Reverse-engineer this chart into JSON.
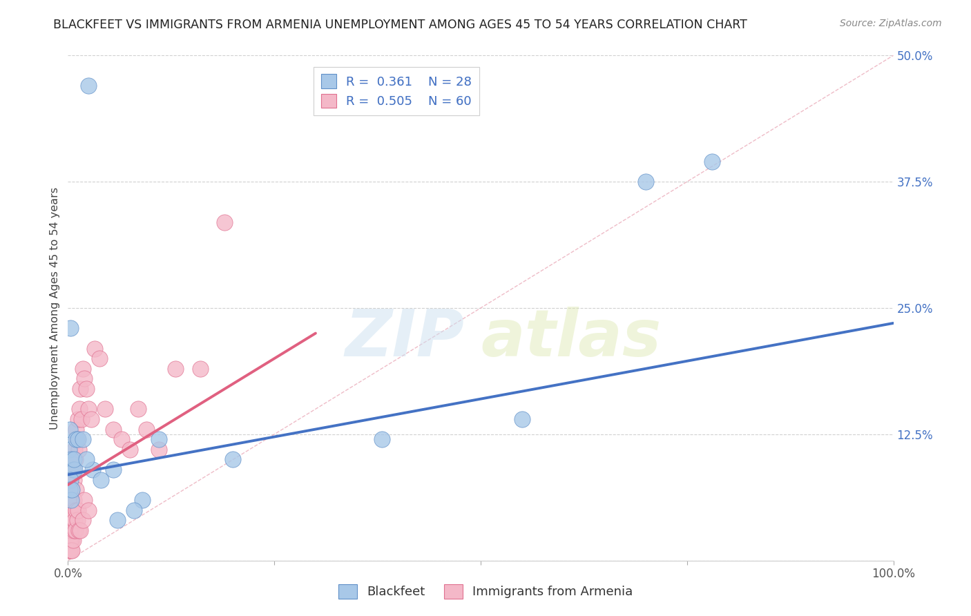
{
  "title": "BLACKFEET VS IMMIGRANTS FROM ARMENIA UNEMPLOYMENT AMONG AGES 45 TO 54 YEARS CORRELATION CHART",
  "source": "Source: ZipAtlas.com",
  "ylabel": "Unemployment Among Ages 45 to 54 years",
  "xlim": [
    0,
    1.0
  ],
  "ylim": [
    0,
    0.5
  ],
  "xticks": [
    0,
    0.25,
    0.5,
    0.75,
    1.0
  ],
  "xticklabels": [
    "0.0%",
    "",
    "",
    "",
    "100.0%"
  ],
  "yticks": [
    0,
    0.125,
    0.25,
    0.375,
    0.5
  ],
  "yticklabels": [
    "",
    "12.5%",
    "25.0%",
    "37.5%",
    "50.0%"
  ],
  "blue_R": 0.361,
  "blue_N": 28,
  "pink_R": 0.505,
  "pink_N": 60,
  "blue_color": "#a8c8e8",
  "blue_edge_color": "#6090c8",
  "blue_line_color": "#4472c4",
  "pink_color": "#f4b8c8",
  "pink_edge_color": "#e07090",
  "pink_line_color": "#e06080",
  "blue_scatter_x": [
    0.025,
    0.003,
    0.002,
    0.001,
    0.004,
    0.006,
    0.008,
    0.01,
    0.003,
    0.002,
    0.004,
    0.005,
    0.007,
    0.012,
    0.018,
    0.03,
    0.022,
    0.04,
    0.055,
    0.11,
    0.09,
    0.08,
    0.06,
    0.2,
    0.38,
    0.55,
    0.7,
    0.78
  ],
  "blue_scatter_y": [
    0.47,
    0.23,
    0.13,
    0.11,
    0.1,
    0.09,
    0.09,
    0.12,
    0.08,
    0.07,
    0.06,
    0.07,
    0.1,
    0.12,
    0.12,
    0.09,
    0.1,
    0.08,
    0.09,
    0.12,
    0.06,
    0.05,
    0.04,
    0.1,
    0.12,
    0.14,
    0.375,
    0.395
  ],
  "blue_line_x0": 0.0,
  "blue_line_x1": 1.0,
  "blue_line_y0": 0.085,
  "blue_line_y1": 0.235,
  "pink_scatter_x": [
    0.001,
    0.002,
    0.002,
    0.003,
    0.003,
    0.004,
    0.005,
    0.006,
    0.007,
    0.008,
    0.009,
    0.01,
    0.01,
    0.011,
    0.012,
    0.013,
    0.014,
    0.015,
    0.016,
    0.018,
    0.02,
    0.022,
    0.025,
    0.028,
    0.032,
    0.038,
    0.045,
    0.055,
    0.065,
    0.075,
    0.085,
    0.095,
    0.11,
    0.13,
    0.16,
    0.19,
    0.001,
    0.001,
    0.002,
    0.002,
    0.003,
    0.003,
    0.004,
    0.004,
    0.005,
    0.005,
    0.006,
    0.006,
    0.007,
    0.007,
    0.008,
    0.009,
    0.01,
    0.011,
    0.012,
    0.013,
    0.015,
    0.018,
    0.02,
    0.025
  ],
  "pink_scatter_y": [
    0.05,
    0.08,
    0.04,
    0.06,
    0.03,
    0.07,
    0.02,
    0.09,
    0.08,
    0.11,
    0.1,
    0.13,
    0.07,
    0.12,
    0.14,
    0.11,
    0.15,
    0.17,
    0.14,
    0.19,
    0.18,
    0.17,
    0.15,
    0.14,
    0.21,
    0.2,
    0.15,
    0.13,
    0.12,
    0.11,
    0.15,
    0.13,
    0.11,
    0.19,
    0.19,
    0.335,
    0.01,
    0.02,
    0.03,
    0.01,
    0.02,
    0.04,
    0.01,
    0.03,
    0.01,
    0.04,
    0.02,
    0.05,
    0.03,
    0.06,
    0.04,
    0.03,
    0.05,
    0.04,
    0.05,
    0.03,
    0.03,
    0.04,
    0.06,
    0.05
  ],
  "pink_line_x0": 0.0,
  "pink_line_x1": 0.3,
  "pink_line_y0": 0.075,
  "pink_line_y1": 0.225,
  "diag_color": "#e8a0b0",
  "watermark_zip": "ZIP",
  "watermark_atlas": "atlas",
  "background_color": "#ffffff",
  "grid_color": "#d0d0d0",
  "ytick_color": "#4472c4",
  "xtick_color": "#555555"
}
